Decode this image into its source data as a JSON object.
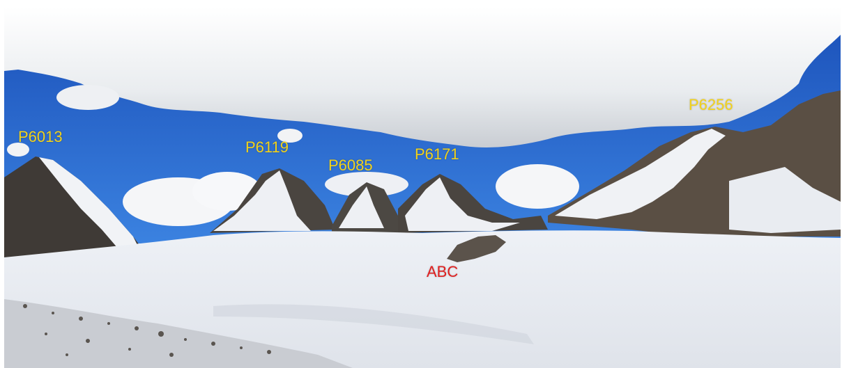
{
  "photo": {
    "label_color": "#f2d21a",
    "camp_color": "#e01f1f",
    "sky_color": "#1f5fc4",
    "snow_color": "#f3f5f8",
    "rock_color": "#4a4540",
    "peaks": [
      {
        "id": "p6013",
        "text": "P6013"
      },
      {
        "id": "p6119",
        "text": "P6119"
      },
      {
        "id": "p6085",
        "text": "P6085"
      },
      {
        "id": "p6171",
        "text": "P6171"
      },
      {
        "id": "p6256",
        "text": "P6256"
      }
    ],
    "camp": {
      "text": "ABC"
    }
  }
}
